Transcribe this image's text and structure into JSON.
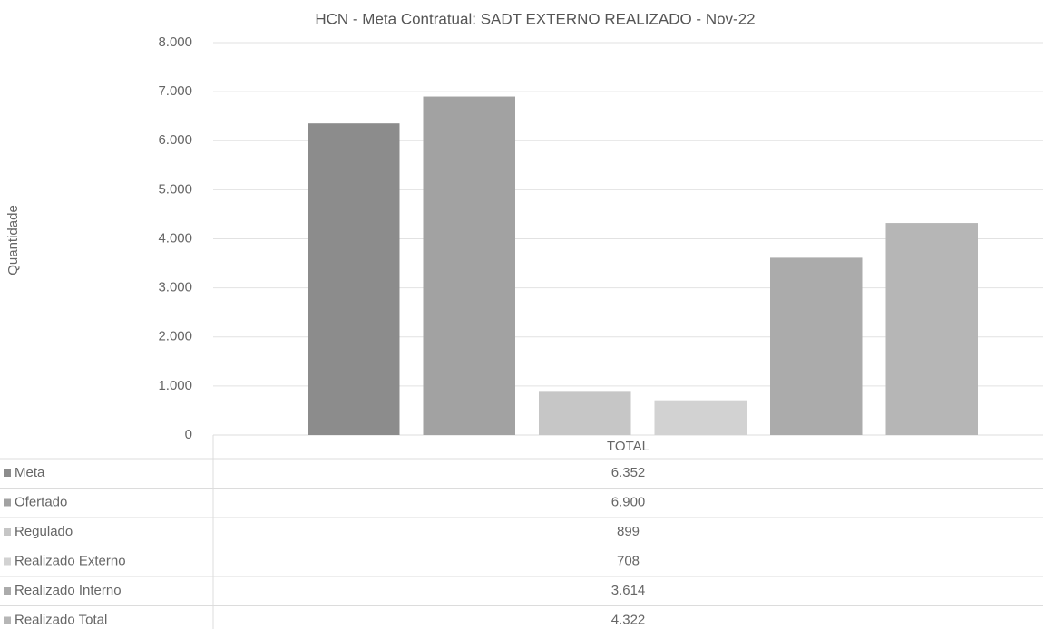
{
  "chart_data": {
    "type": "bar",
    "title": "HCN - Meta Contratual: SADT EXTERNO REALIZADO - Nov-22",
    "y_label": "Quantidade",
    "categories": [
      "TOTAL"
    ],
    "series": [
      {
        "name": "Meta",
        "color": "#8c8c8c",
        "values": [
          6352
        ],
        "value_labels": [
          "6.352"
        ]
      },
      {
        "name": "Ofertado",
        "color": "#a2a2a2",
        "values": [
          6900
        ],
        "value_labels": [
          "6.900"
        ]
      },
      {
        "name": "Regulado",
        "color": "#c6c6c6",
        "values": [
          899
        ]
      },
      {
        "name": "Realizado Externo",
        "color": "#d2d2d2",
        "values": [
          708
        ]
      },
      {
        "name": "Realizado Interno",
        "color": "#ababab",
        "values": [
          3614
        ],
        "value_labels": [
          "3.614"
        ]
      },
      {
        "name": "Realizado Total",
        "color": "#b6b6b6",
        "values": [
          4322
        ],
        "value_labels": [
          "4.322"
        ]
      }
    ],
    "ylim": [
      0,
      8000
    ],
    "yticks": [
      0,
      {
        "value": 1000,
        "label": "1.000"
      },
      {
        "value": 2000,
        "label": "2.000"
      },
      {
        "value": 3000,
        "label": "3.000"
      },
      {
        "value": 4000,
        "label": "4.000"
      },
      {
        "value": 5000,
        "label": "5.000"
      },
      {
        "value": 6000,
        "label": "6.000"
      },
      {
        "value": 7000,
        "label": "7.000"
      },
      {
        "value": 8000,
        "label": "8.000"
      }
    ],
    "grid": true
  }
}
